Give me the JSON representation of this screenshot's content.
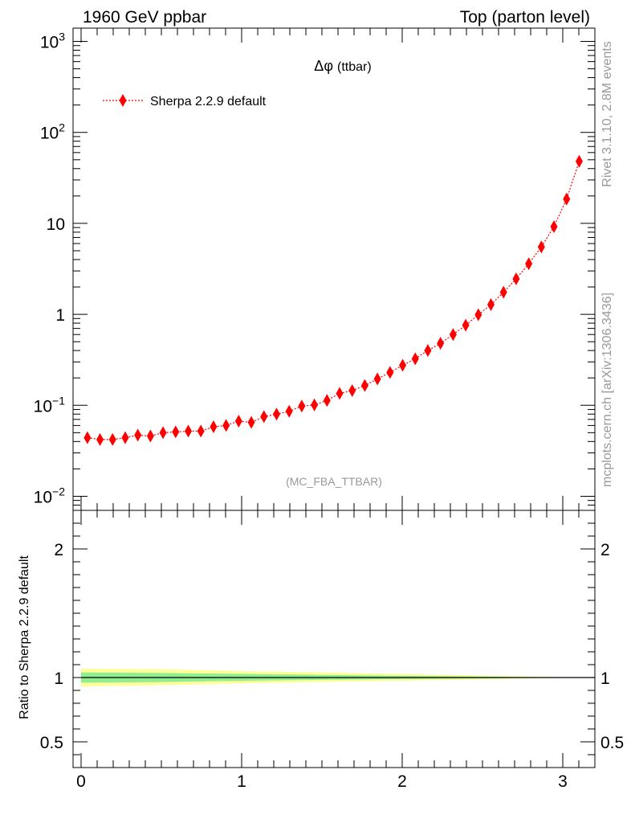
{
  "header": {
    "left": "1960 GeV ppbar",
    "right": "Top (parton level)"
  },
  "side": {
    "rivet": "Rivet 3.1.10,  2.8M events",
    "mcplots": "mcplots.cern.ch [arXiv:1306.3436]"
  },
  "main_plot": {
    "title_symbol": "Δφ",
    "title_text": "(ttbar)",
    "analysis_label": "(MC_FBA_TTBAR)"
  },
  "ratio_plot": {
    "ylabel": "Ratio to Sherpa 2.2.9 default"
  },
  "colors": {
    "series": "#ff0000",
    "band_inner": "#90ee90",
    "band_outer": "#ffff99",
    "axis": "#000000",
    "label_gray": "#999999"
  },
  "chart_data": [
    {
      "type": "line",
      "yscale": "log",
      "xlim": [
        -0.05,
        3.2
      ],
      "ylim": [
        0.007,
        1400
      ],
      "yticks": [
        {
          "value": 0.01,
          "base": "10",
          "exp": "−2"
        },
        {
          "value": 0.1,
          "base": "10",
          "exp": "−1"
        },
        {
          "value": 1,
          "base": "1",
          "exp": ""
        },
        {
          "value": 10,
          "base": "10",
          "exp": ""
        },
        {
          "value": 100,
          "base": "10",
          "exp": "2"
        },
        {
          "value": 1000,
          "base": "10",
          "exp": "3"
        }
      ],
      "legend_placement": "top-left",
      "series": [
        {
          "name": "Sherpa 2.2.9 default",
          "marker": "diamond",
          "linestyle": "dotted",
          "x": [
            0.0393,
            0.1178,
            0.1963,
            0.2749,
            0.3534,
            0.432,
            0.5105,
            0.589,
            0.6676,
            0.7461,
            0.8247,
            0.9032,
            0.9817,
            1.0603,
            1.1388,
            1.2174,
            1.2959,
            1.3744,
            1.453,
            1.5315,
            1.6101,
            1.6886,
            1.7671,
            1.8457,
            1.9242,
            2.0028,
            2.0813,
            2.1598,
            2.2384,
            2.3169,
            2.3955,
            2.474,
            2.5525,
            2.6311,
            2.7096,
            2.7882,
            2.8667,
            2.9452,
            3.0238,
            3.1023
          ],
          "y": [
            0.044,
            0.042,
            0.042,
            0.044,
            0.047,
            0.046,
            0.05,
            0.051,
            0.052,
            0.052,
            0.058,
            0.06,
            0.067,
            0.065,
            0.075,
            0.08,
            0.086,
            0.098,
            0.101,
            0.113,
            0.135,
            0.145,
            0.165,
            0.195,
            0.23,
            0.275,
            0.325,
            0.4,
            0.48,
            0.6,
            0.76,
            0.99,
            1.28,
            1.75,
            2.45,
            3.6,
            5.5,
            9.2,
            18.5,
            48.0
          ]
        }
      ]
    },
    {
      "type": "area",
      "xlim": [
        -0.05,
        3.2
      ],
      "ylim": [
        0.3,
        2.3
      ],
      "yticks": [
        0.5,
        1,
        2
      ],
      "xticks": [
        0,
        1,
        2,
        3
      ],
      "series": [
        {
          "name": "",
          "x": [
            0.0,
            0.5,
            1.0,
            1.5,
            2.0,
            2.5,
            2.8,
            3.0,
            3.2
          ],
          "outer_lo": [
            0.93,
            0.94,
            0.955,
            0.965,
            0.975,
            0.985,
            0.993,
            0.997,
            0.999
          ],
          "outer_hi": [
            1.07,
            1.065,
            1.05,
            1.04,
            1.028,
            1.015,
            1.007,
            1.003,
            1.001
          ],
          "inner_lo": [
            0.96,
            0.965,
            0.975,
            0.982,
            0.988,
            0.993,
            0.997,
            0.999,
            1.0
          ],
          "inner_hi": [
            1.04,
            1.035,
            1.028,
            1.02,
            1.013,
            1.007,
            1.003,
            1.001,
            1.0
          ],
          "ratio": [
            1,
            1,
            1,
            1,
            1,
            1,
            1,
            1,
            1
          ]
        }
      ]
    }
  ]
}
